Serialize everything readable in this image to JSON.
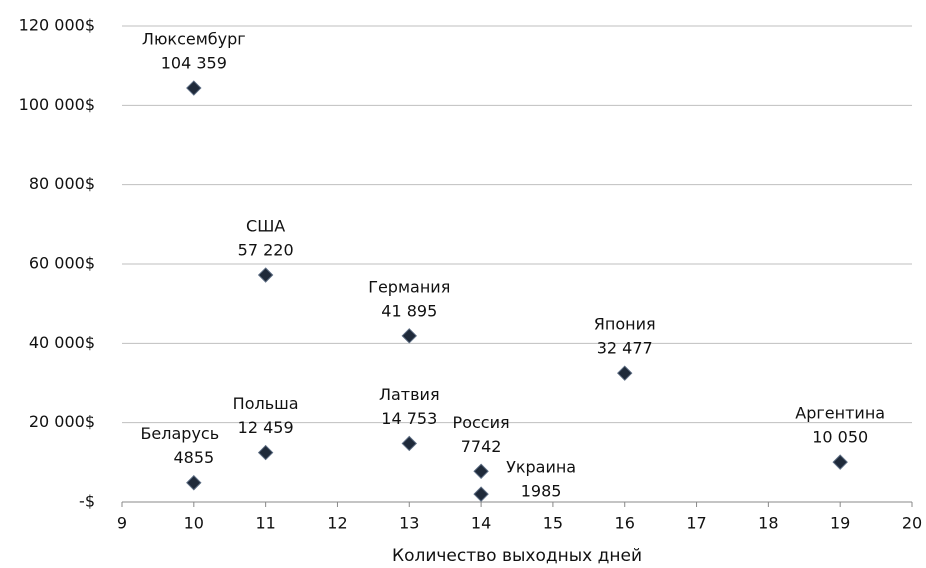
{
  "chart_data": {
    "type": "scatter",
    "x_label": "Количество выходных дней",
    "series": [
      {
        "color": "#1f2a3a",
        "names": [
          "Люксембург",
          "США",
          "Германия",
          "Япония",
          "Латвия",
          "Польша",
          "Беларусь",
          "Россия",
          "Украина",
          "Аргентина"
        ],
        "x": [
          10,
          11,
          13,
          16,
          13,
          11,
          10,
          14,
          14,
          19
        ],
        "values": [
          104359,
          57220,
          41895,
          32477,
          14753,
          12459,
          4855,
          7742,
          1985,
          10050
        ],
        "value_labels": [
          "104 359",
          "57 220",
          "41 895",
          "32 477",
          "14 753",
          "12 459",
          "4855",
          "7742",
          "1985",
          "10 050"
        ]
      }
    ],
    "xlim": [
      9,
      20
    ],
    "xticks": [
      9,
      10,
      11,
      12,
      13,
      14,
      15,
      16,
      17,
      18,
      19,
      20
    ],
    "ylim": [
      0,
      120000
    ],
    "yticks": [
      {
        "value": 0,
        "label": "-$"
      },
      {
        "value": 20000,
        "label": "20 000$"
      },
      {
        "value": 40000,
        "label": "40 000$"
      },
      {
        "value": 60000,
        "label": "60 000$"
      },
      {
        "value": 80000,
        "label": "80 000$"
      },
      {
        "value": 100000,
        "label": "100 000$"
      },
      {
        "value": 120000,
        "label": "120 000$"
      }
    ],
    "grid": true
  }
}
